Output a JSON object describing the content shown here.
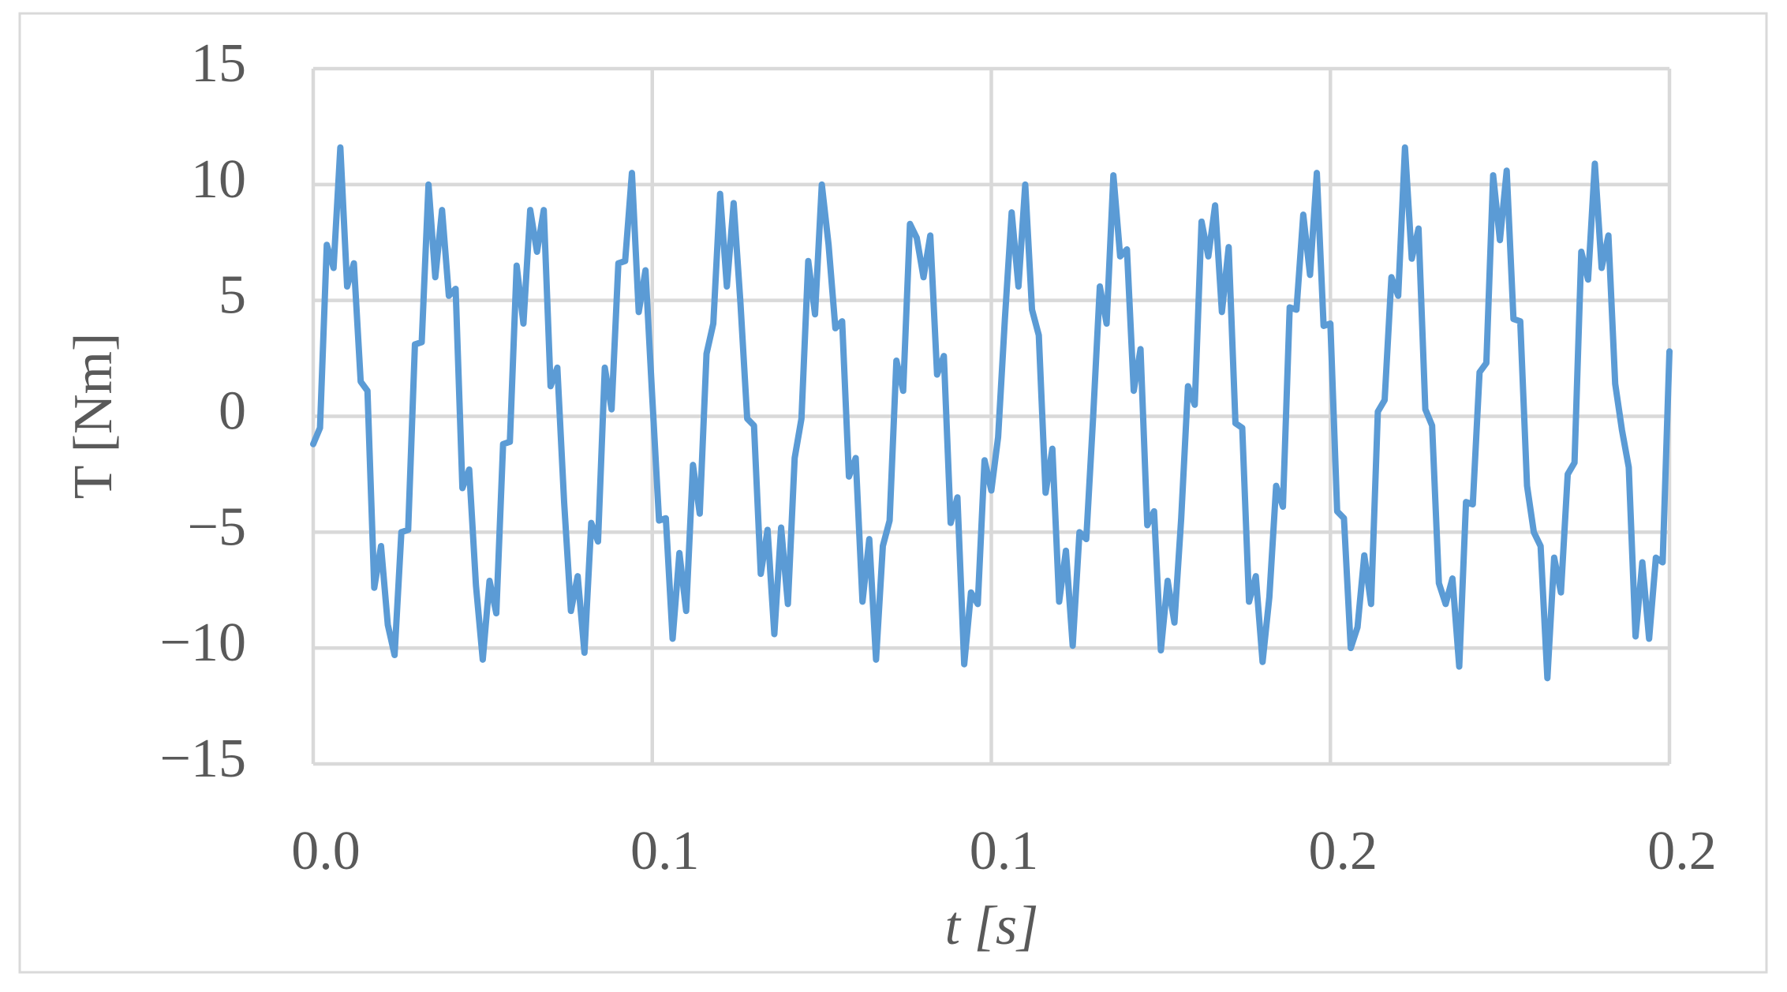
{
  "chart_data": {
    "type": "line",
    "x_label": "t [s]",
    "y_label": "T [Nm]",
    "color": "#5b9bd5",
    "grid": true,
    "xlim": [
      0,
      0.2
    ],
    "ylim": [
      -15,
      15
    ],
    "xticks": [
      {
        "value": 0,
        "label": "0.0"
      },
      0.1,
      {
        "value": 0.05,
        "label": "0.1"
      },
      {
        "value": 0.15,
        "label": "0.2"
      },
      0.2
    ],
    "yticks": [
      {
        "value": -15,
        "label": "−15"
      },
      {
        "value": -10,
        "label": "−10"
      },
      {
        "value": -5,
        "label": "−5"
      },
      0,
      5,
      10,
      15
    ],
    "x": [
      0,
      0.001,
      0.002,
      0.003,
      0.004,
      0.005,
      0.006,
      0.007,
      0.008,
      0.009,
      0.01,
      0.011,
      0.012,
      0.013,
      0.014,
      0.015,
      0.016,
      0.017,
      0.018,
      0.019,
      0.02,
      0.021,
      0.022,
      0.023,
      0.024,
      0.025,
      0.026,
      0.027,
      0.028,
      0.029,
      0.03,
      0.031,
      0.032,
      0.033,
      0.034,
      0.035,
      0.036,
      0.037,
      0.038,
      0.039,
      0.04,
      0.041,
      0.042,
      0.043,
      0.044,
      0.045,
      0.046,
      0.047,
      0.048,
      0.049,
      0.05,
      0.051,
      0.052,
      0.053,
      0.054,
      0.055,
      0.056,
      0.057,
      0.058,
      0.059,
      0.06,
      0.061,
      0.062,
      0.063,
      0.064,
      0.065,
      0.066,
      0.067,
      0.068,
      0.069,
      0.07,
      0.071,
      0.072,
      0.073,
      0.074,
      0.075,
      0.076,
      0.077,
      0.078,
      0.079,
      0.08,
      0.081,
      0.082,
      0.083,
      0.084,
      0.085,
      0.086,
      0.087,
      0.088,
      0.089,
      0.09,
      0.091,
      0.092,
      0.093,
      0.094,
      0.095,
      0.096,
      0.097,
      0.098,
      0.099,
      0.1,
      0.101,
      0.102,
      0.103,
      0.104,
      0.105,
      0.106,
      0.107,
      0.108,
      0.109,
      0.11,
      0.111,
      0.112,
      0.113,
      0.114,
      0.115,
      0.116,
      0.117,
      0.118,
      0.119,
      0.12,
      0.121,
      0.122,
      0.123,
      0.124,
      0.125,
      0.126,
      0.127,
      0.128,
      0.129,
      0.13,
      0.131,
      0.132,
      0.133,
      0.134,
      0.135,
      0.136,
      0.137,
      0.138,
      0.139,
      0.14,
      0.141,
      0.142,
      0.143,
      0.144,
      0.145,
      0.146,
      0.147,
      0.148,
      0.149,
      0.15,
      0.151,
      0.152,
      0.153,
      0.154,
      0.155,
      0.156,
      0.157,
      0.158,
      0.159,
      0.16,
      0.161,
      0.162,
      0.163,
      0.164,
      0.165,
      0.166,
      0.167,
      0.168,
      0.169,
      0.17,
      0.171,
      0.172,
      0.173,
      0.174,
      0.175,
      0.176,
      0.177,
      0.178,
      0.179,
      0.18,
      0.181,
      0.182,
      0.183,
      0.184,
      0.185,
      0.186,
      0.187,
      0.188,
      0.189,
      0.19,
      0.191,
      0.192,
      0.193,
      0.194,
      0.195,
      0.196,
      0.197,
      0.198,
      0.199,
      0.2
    ],
    "values": [
      -1.2,
      -0.5,
      7.4,
      6.4,
      11.6,
      5.6,
      6.6,
      1.5,
      1.1,
      -7.4,
      -5.6,
      -9.0,
      -10.3,
      -5.0,
      -4.9,
      3.1,
      3.2,
      10.0,
      6.0,
      8.9,
      5.2,
      5.5,
      -3.1,
      -2.3,
      -7.3,
      -10.5,
      -7.1,
      -8.5,
      -1.2,
      -1.1,
      6.5,
      4.0,
      8.9,
      7.1,
      8.9,
      1.3,
      2.1,
      -3.7,
      -8.4,
      -6.9,
      -10.2,
      -4.6,
      -5.4,
      2.1,
      0.3,
      6.6,
      6.7,
      10.5,
      4.5,
      6.3,
      0.8,
      -4.5,
      -4.4,
      -9.6,
      -5.9,
      -8.4,
      -2.1,
      -4.2,
      2.7,
      4.0,
      9.6,
      5.6,
      9.2,
      4.9,
      -0.1,
      -0.4,
      -6.8,
      -4.9,
      -9.4,
      -4.8,
      -8.1,
      -1.8,
      -0.1,
      6.7,
      4.4,
      10.0,
      7.4,
      3.8,
      4.1,
      -2.6,
      -1.8,
      -8.0,
      -5.3,
      -10.5,
      -5.6,
      -4.5,
      2.4,
      1.1,
      8.3,
      7.7,
      6.0,
      7.8,
      1.8,
      2.6,
      -4.6,
      -3.5,
      -10.7,
      -7.6,
      -8.1,
      -1.9,
      -3.2,
      -0.9,
      4.2,
      8.8,
      5.6,
      10.0,
      4.6,
      3.5,
      -3.3,
      -1.4,
      -8.0,
      -5.8,
      -9.9,
      -5.0,
      -5.3,
      -0.1,
      5.6,
      4.0,
      10.4,
      6.9,
      7.2,
      1.1,
      2.9,
      -4.7,
      -4.1,
      -10.1,
      -7.1,
      -8.9,
      -4.4,
      1.3,
      0.5,
      8.4,
      6.9,
      9.1,
      4.5,
      7.3,
      -0.3,
      -0.5,
      -8.0,
      -6.9,
      -10.6,
      -7.8,
      -3.0,
      -3.9,
      4.7,
      4.6,
      8.7,
      6.1,
      10.5,
      3.9,
      4.0,
      -4.1,
      -4.4,
      -10.0,
      -9.1,
      -6.0,
      -8.1,
      0.2,
      0.7,
      6.0,
      5.2,
      11.6,
      6.8,
      8.1,
      0.3,
      -0.4,
      -7.2,
      -8.1,
      -7.0,
      -10.8,
      -3.7,
      -3.8,
      1.9,
      2.3,
      10.4,
      7.6,
      10.6,
      4.2,
      4.1,
      -3.0,
      -5.0,
      -5.6,
      -11.3,
      -6.1,
      -7.6,
      -2.5,
      -2.0,
      7.1,
      5.9,
      10.9,
      6.4,
      7.8,
      1.4,
      -0.6,
      -2.2,
      -9.5,
      -6.3,
      -9.6,
      -6.1,
      -6.3,
      2.8
    ]
  }
}
